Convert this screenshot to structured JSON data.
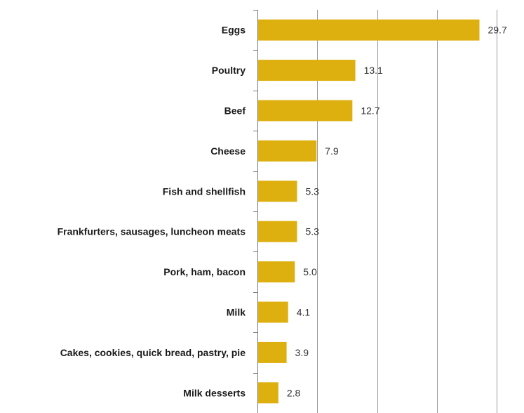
{
  "chart_data": {
    "type": "bar",
    "orientation": "horizontal",
    "categories": [
      "Eggs",
      "Poultry",
      "Beef",
      "Cheese",
      "Fish and shellfish",
      "Frankfurters, sausages, luncheon meats",
      "Pork, ham, bacon",
      "Milk",
      "Cakes, cookies, quick bread, pastry, pie",
      "Milk desserts"
    ],
    "values": [
      29.7,
      13.1,
      12.7,
      7.9,
      5.3,
      5.3,
      5.0,
      4.1,
      3.9,
      2.8
    ],
    "value_labels": [
      "29.7",
      "13.1",
      "12.7",
      "7.9",
      "5.3",
      "5.3",
      "5.0",
      "4.1",
      "3.9",
      "2.8"
    ],
    "title": "",
    "xlabel": "",
    "ylabel": "",
    "xlim": [
      0,
      32
    ],
    "gridlines": [
      8,
      16,
      24,
      32
    ],
    "grid": true,
    "legend": "none",
    "bar_color": "#DDB010"
  }
}
